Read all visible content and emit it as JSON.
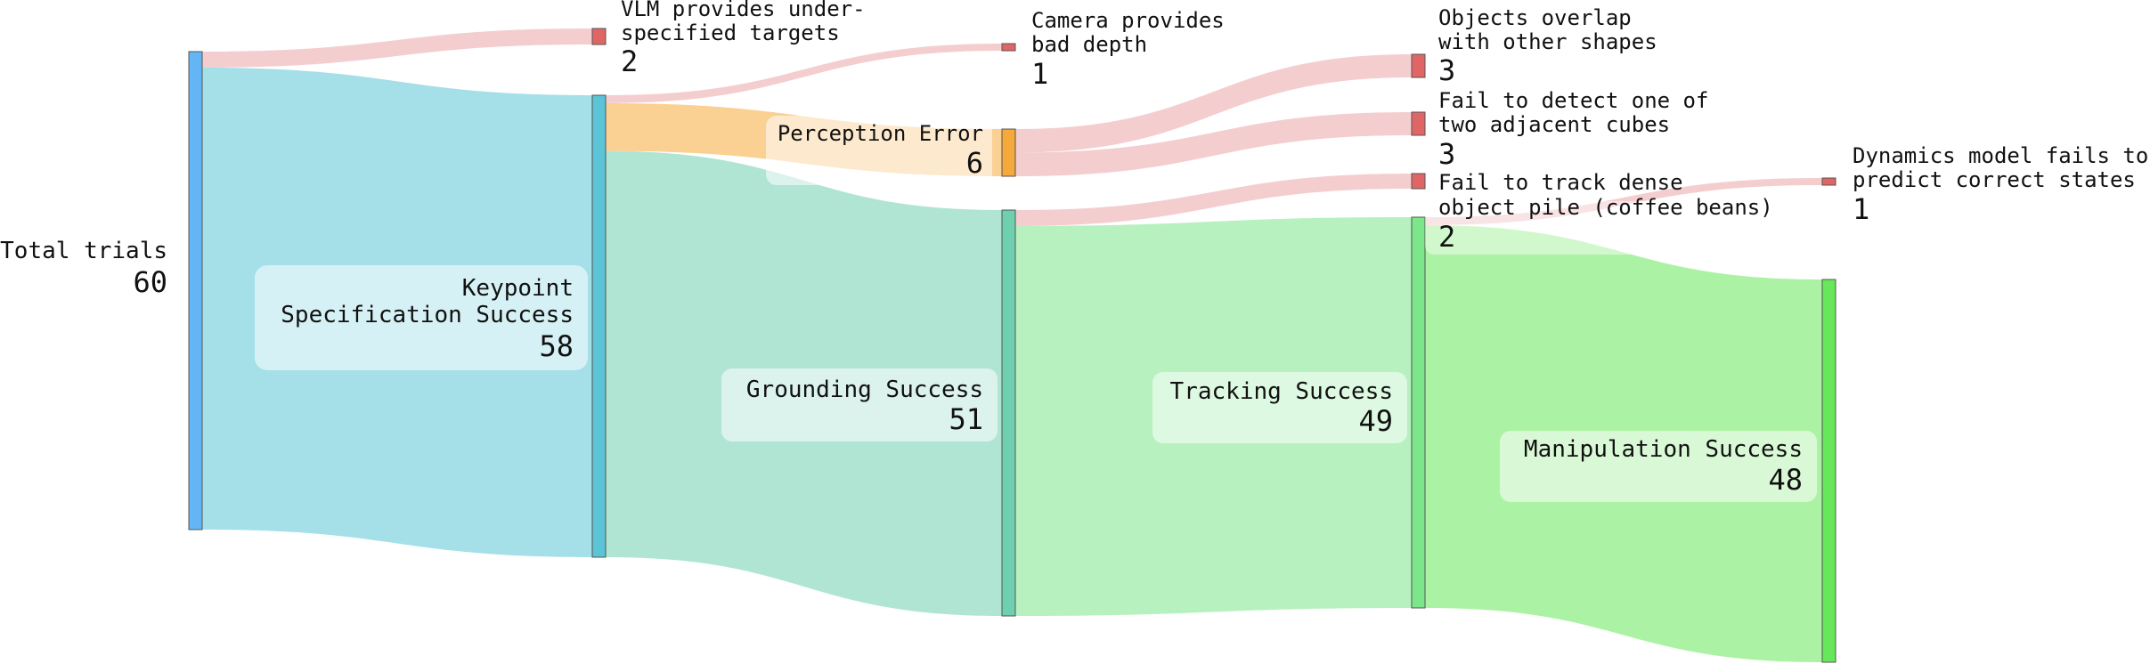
{
  "chart_data": {
    "type": "sankey",
    "colors": {
      "total": "#64b5f6",
      "keypoint": "#5bc4d6",
      "grounding": "#6fd0b0",
      "tracking": "#7ce68a",
      "manipulation": "#66e85a",
      "perception": "#f5a93a",
      "failure": "#e06666",
      "failure_link": "#eba5a8"
    },
    "nodes": [
      {
        "id": "total",
        "label": "Total trials",
        "value": 60
      },
      {
        "id": "keypoint",
        "label": "Keypoint Specification Success",
        "value": 58
      },
      {
        "id": "vlm",
        "label": "VLM provides under-specified targets",
        "value": 2
      },
      {
        "id": "grounding",
        "label": "Grounding Success",
        "value": 51
      },
      {
        "id": "perception",
        "label": "Perception Error",
        "value": 6
      },
      {
        "id": "camera",
        "label": "Camera provides bad depth",
        "value": 1
      },
      {
        "id": "overlap",
        "label": "Objects overlap with other shapes",
        "value": 3
      },
      {
        "id": "adjacent",
        "label": "Fail to detect one of two adjacent cubes",
        "value": 3
      },
      {
        "id": "dense",
        "label": "Fail to track dense object pile (coffee beans)",
        "value": 2
      },
      {
        "id": "tracking",
        "label": "Tracking Success",
        "value": 49
      },
      {
        "id": "dynamics",
        "label": "Dynamics model fails to predict correct states",
        "value": 1
      },
      {
        "id": "manipulation",
        "label": "Manipulation Success",
        "value": 48
      }
    ],
    "links": [
      {
        "source": "total",
        "target": "vlm",
        "value": 2
      },
      {
        "source": "total",
        "target": "keypoint",
        "value": 58
      },
      {
        "source": "keypoint",
        "target": "camera",
        "value": 1
      },
      {
        "source": "keypoint",
        "target": "perception",
        "value": 6
      },
      {
        "source": "keypoint",
        "target": "grounding",
        "value": 51
      },
      {
        "source": "perception",
        "target": "overlap",
        "value": 3
      },
      {
        "source": "perception",
        "target": "adjacent",
        "value": 3
      },
      {
        "source": "grounding",
        "target": "dense",
        "value": 2
      },
      {
        "source": "grounding",
        "target": "tracking",
        "value": 49
      },
      {
        "source": "tracking",
        "target": "dynamics",
        "value": 1
      },
      {
        "source": "tracking",
        "target": "manipulation",
        "value": 48
      }
    ]
  },
  "labels": {
    "total": {
      "lines": [
        "Total trials"
      ],
      "value": "60"
    },
    "keypoint": {
      "lines": [
        "Keypoint",
        "Specification Success"
      ],
      "value": "58"
    },
    "vlm": {
      "lines": [
        "VLM provides under-",
        "specified targets"
      ],
      "value": "2"
    },
    "camera": {
      "lines": [
        "Camera provides",
        "bad depth"
      ],
      "value": "1"
    },
    "perception": {
      "lines": [
        "Perception Error"
      ],
      "value": "6"
    },
    "grounding": {
      "lines": [
        "Grounding Success"
      ],
      "value": "51"
    },
    "overlap": {
      "lines": [
        "Objects overlap",
        "with other shapes"
      ],
      "value": "3"
    },
    "adjacent": {
      "lines": [
        "Fail to detect one of",
        "two adjacent cubes"
      ],
      "value": "3"
    },
    "dense": {
      "lines": [
        "Fail to track dense",
        "object pile (coffee beans)"
      ],
      "value": "2"
    },
    "tracking": {
      "lines": [
        "Tracking Success"
      ],
      "value": "49"
    },
    "dynamics": {
      "lines": [
        "Dynamics model fails to",
        "predict correct states"
      ],
      "value": "1"
    },
    "manipulation": {
      "lines": [
        "Manipulation Success"
      ],
      "value": "48"
    }
  }
}
